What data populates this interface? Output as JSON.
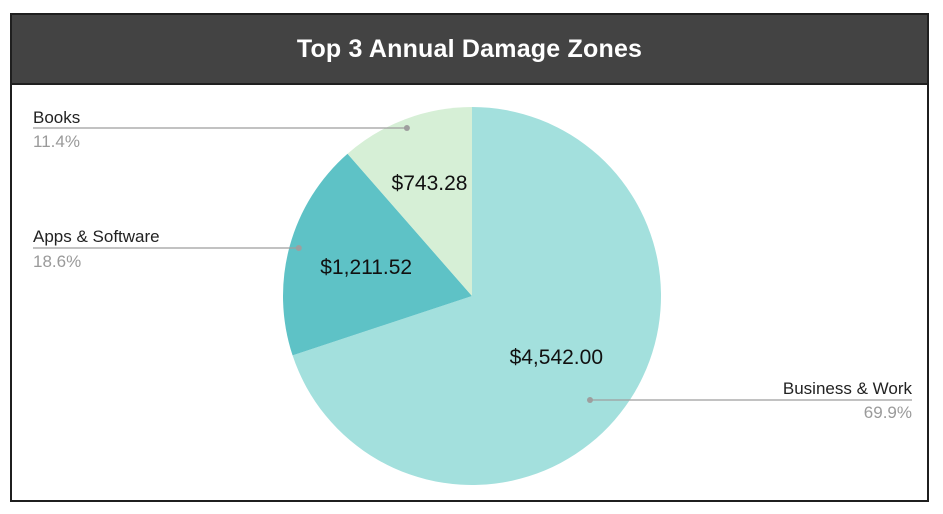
{
  "chart_data": {
    "type": "pie",
    "title": "Top 3 Annual Damage Zones",
    "slices": [
      {
        "name": "Business & Work",
        "value": 4542.0,
        "value_label": "$4,542.00",
        "percent_label": "69.9%",
        "color": "#a3e0dd"
      },
      {
        "name": "Apps & Software",
        "value": 1211.52,
        "value_label": "$1,211.52",
        "percent_label": "18.6%",
        "color": "#5ec2c6"
      },
      {
        "name": "Books",
        "value": 743.28,
        "value_label": "$743.28",
        "percent_label": "11.4%",
        "color": "#d6efd6"
      }
    ],
    "legend": "callouts",
    "colors": {
      "title_bar": "#434343",
      "leader_line": "#9e9e9e"
    }
  }
}
